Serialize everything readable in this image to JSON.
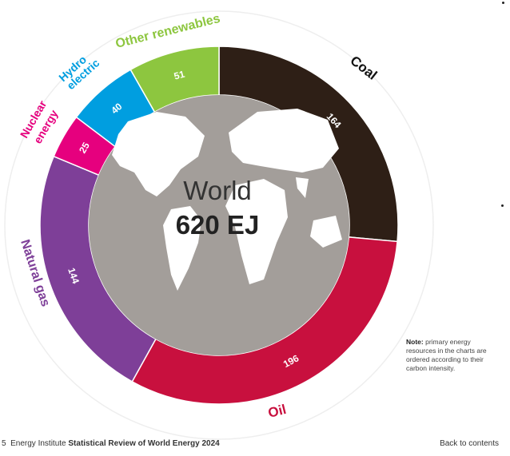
{
  "chart_data": {
    "type": "pie",
    "total_label": "World",
    "total_value": "620 EJ",
    "segments": [
      {
        "name": "Coal",
        "value": 164,
        "color": "#2e1f16",
        "label_color": "#111111",
        "text_color": "#ffffff"
      },
      {
        "name": "Oil",
        "value": 196,
        "color": "#c8103e",
        "label_color": "#c8103e",
        "text_color": "#ffffff"
      },
      {
        "name": "Natural gas",
        "value": 144,
        "color": "#7e3f98",
        "label_color": "#7e3f98",
        "text_color": "#ffffff"
      },
      {
        "name": "Nuclear energy",
        "value": 25,
        "color": "#e6007e",
        "label_color": "#e6007e",
        "text_color": "#ffffff"
      },
      {
        "name": "Hydro electric",
        "value": 40,
        "color": "#009ee0",
        "label_color": "#009ee0",
        "text_color": "#ffffff"
      },
      {
        "name": "Other renewables",
        "value": 51,
        "color": "#8dc63f",
        "label_color": "#8dc63f",
        "text_color": "#ffffff"
      }
    ]
  },
  "labels": {
    "coal": "Coal",
    "oil": "Oil",
    "natural_gas": "Natural gas",
    "nuclear_1": "Nuclear",
    "nuclear_2": "energy",
    "hydro_1": "Hydro",
    "hydro_2": "electric",
    "other_renewables": "Other renewables"
  },
  "note": {
    "bold": "Note:",
    "text": "primary energy resources in the charts are ordered according to their carbon intensity."
  },
  "footer": {
    "page_number": "5",
    "publisher": "Energy Institute",
    "title": "Statistical Review of World Energy 2024",
    "back_link": "Back to contents"
  }
}
